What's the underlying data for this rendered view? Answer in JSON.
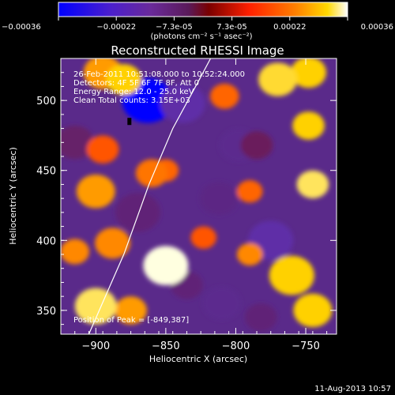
{
  "colorbar": {
    "ticks": [
      "-0.00036",
      "-0.00022",
      "-7.3e-05",
      "7.3e-05",
      "0.00022",
      "0.00036"
    ],
    "unit_label": "(photons cm⁻² s⁻¹ asec⁻²)"
  },
  "plot": {
    "title": "Reconstructed RHESSI Image",
    "xlabel": "Heliocentric X (arcsec)",
    "ylabel": "Heliocentric Y (arcsec)",
    "info": [
      "26-Feb-2011 10:51:08.000 to 10:52:24.000",
      "Detectors: 4F 5F 6F 7F 8F, Att 0",
      "Energy Range: 12.0 - 25.0 keV",
      "Clean     Total counts: 3.15E+03"
    ],
    "peak_label": "Position of Peak = [-849,387]"
  },
  "footer": {
    "date": "11-Aug-2013 10:57"
  },
  "chart_data": {
    "type": "heatmap",
    "title": "Reconstructed RHESSI Image",
    "xlabel": "Heliocentric X (arcsec)",
    "ylabel": "Heliocentric Y (arcsec)",
    "xlim": [
      -925,
      -728
    ],
    "ylim": [
      333,
      530
    ],
    "x_ticks": [
      -900,
      -850,
      -800,
      -750
    ],
    "y_ticks": [
      350,
      400,
      450,
      500
    ],
    "colorscale": {
      "min": -0.00036,
      "max": 0.00036,
      "stops": [
        "#0000ff",
        "#6633cc",
        "#5a2a8a",
        "#8b0000",
        "#ff2000",
        "#ff7000",
        "#ffd000",
        "#ffffe0"
      ]
    },
    "peak": [
      -849,
      387
    ],
    "limb_curve": [
      [
        -905,
        333
      ],
      [
        -880,
        390
      ],
      [
        -862,
        440
      ],
      [
        -845,
        480
      ],
      [
        -826,
        515
      ],
      [
        -818,
        530
      ]
    ],
    "blobs": [
      {
        "x": -863,
        "y": 500,
        "v": -0.00036,
        "r": 16
      },
      {
        "x": -838,
        "y": 498,
        "v": -0.0002,
        "r": 14
      },
      {
        "x": -798,
        "y": 468,
        "v": -0.00016,
        "r": 12
      },
      {
        "x": -812,
        "y": 430,
        "v": -0.00015,
        "r": 12
      },
      {
        "x": -870,
        "y": 420,
        "v": -0.00014,
        "r": 14
      },
      {
        "x": -775,
        "y": 400,
        "v": -0.0002,
        "r": 14
      },
      {
        "x": -835,
        "y": 368,
        "v": -0.00014,
        "r": 10
      },
      {
        "x": -810,
        "y": 355,
        "v": -0.00016,
        "r": 12
      },
      {
        "x": -782,
        "y": 345,
        "v": -0.00014,
        "r": 10
      },
      {
        "x": -785,
        "y": 468,
        "v": -0.00012,
        "r": 10
      },
      {
        "x": -915,
        "y": 470,
        "v": -0.00013,
        "r": 12
      },
      {
        "x": -880,
        "y": 515,
        "v": 0.00026,
        "r": 11
      },
      {
        "x": -895,
        "y": 520,
        "v": 0.0002,
        "r": 12
      },
      {
        "x": -895,
        "y": 465,
        "v": 0.00012,
        "r": 10
      },
      {
        "x": -900,
        "y": 435,
        "v": 0.0002,
        "r": 12
      },
      {
        "x": -860,
        "y": 448,
        "v": 0.00016,
        "r": 10
      },
      {
        "x": -850,
        "y": 450,
        "v": 0.00014,
        "r": 8
      },
      {
        "x": -888,
        "y": 398,
        "v": 0.00018,
        "r": 11
      },
      {
        "x": -915,
        "y": 392,
        "v": 0.00018,
        "r": 9
      },
      {
        "x": -900,
        "y": 353,
        "v": 0.0003,
        "r": 13
      },
      {
        "x": -875,
        "y": 350,
        "v": 0.0002,
        "r": 10
      },
      {
        "x": -850,
        "y": 382,
        "v": 0.00036,
        "r": 14
      },
      {
        "x": -823,
        "y": 402,
        "v": 0.00012,
        "r": 8
      },
      {
        "x": -770,
        "y": 515,
        "v": 0.00028,
        "r": 12
      },
      {
        "x": -748,
        "y": 520,
        "v": 0.00026,
        "r": 11
      },
      {
        "x": -748,
        "y": 482,
        "v": 0.00026,
        "r": 10
      },
      {
        "x": -745,
        "y": 440,
        "v": 0.0003,
        "r": 10
      },
      {
        "x": -760,
        "y": 375,
        "v": 0.00026,
        "r": 14
      },
      {
        "x": -745,
        "y": 350,
        "v": 0.00026,
        "r": 12
      },
      {
        "x": -790,
        "y": 390,
        "v": 0.00018,
        "r": 8
      },
      {
        "x": -790,
        "y": 435,
        "v": 0.00014,
        "r": 8
      },
      {
        "x": -808,
        "y": 503,
        "v": 0.00014,
        "r": 9
      }
    ]
  }
}
